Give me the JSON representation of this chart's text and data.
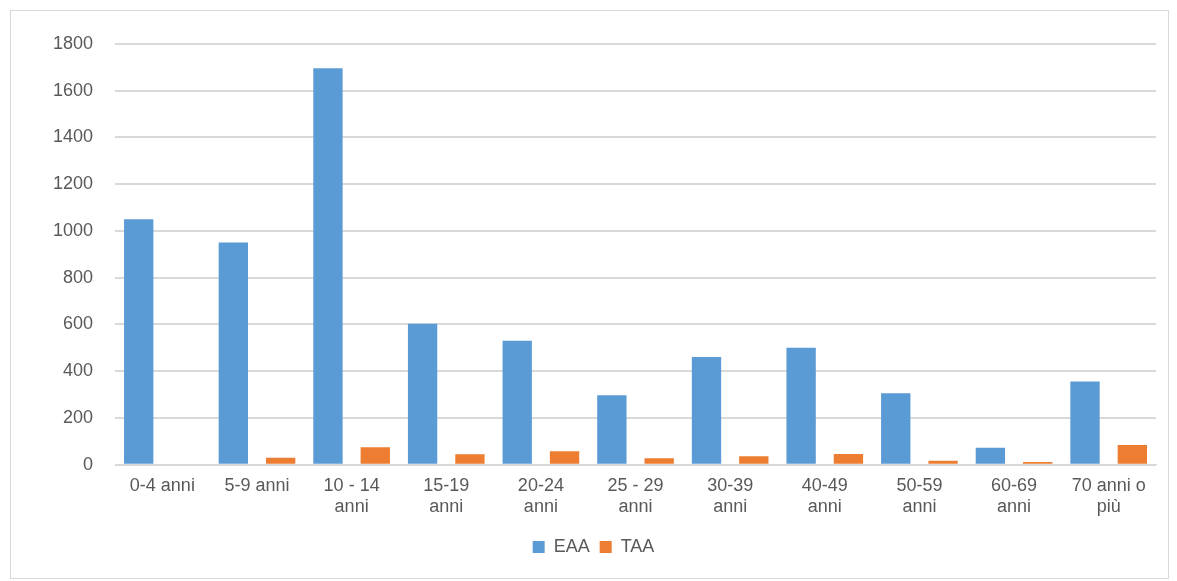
{
  "chart_data": {
    "type": "bar",
    "categories": [
      "0-4 anni",
      "5-9 anni",
      "10 - 14 anni",
      "15-19 anni",
      "20-24 anni",
      "25 - 29 anni",
      "30-39 anni",
      "40-49 anni",
      "50-59 anni",
      "60-69 anni",
      "70 anni o più"
    ],
    "series": [
      {
        "name": "EAA",
        "color": "#5b9bd5",
        "values": [
          1050,
          950,
          1695,
          603,
          530,
          297,
          461,
          500,
          306,
          73,
          356
        ]
      },
      {
        "name": "TAA",
        "color": "#ed7d31",
        "values": [
          0,
          30,
          75,
          45,
          58,
          28,
          37,
          46,
          17,
          12,
          85
        ]
      }
    ],
    "ylim": [
      0,
      1800
    ],
    "yticks": [
      0,
      200,
      400,
      600,
      800,
      1000,
      1200,
      1400,
      1600,
      1800
    ],
    "grid": "y",
    "legend": "bottom"
  }
}
